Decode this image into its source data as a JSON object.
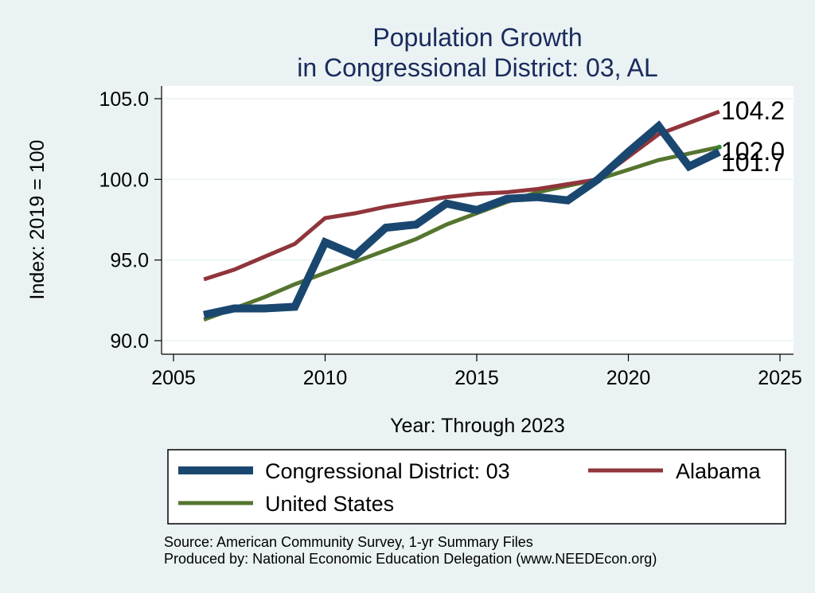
{
  "chart_data": {
    "type": "line",
    "title": [
      "Population Growth",
      "in Congressional District: 03, AL"
    ],
    "xlabel": "Year: Through 2023",
    "ylabel": "Index: 2019 = 100",
    "xlim": [
      2005,
      2025
    ],
    "ylim": [
      89.5,
      105.8
    ],
    "xticks": [
      2005,
      2010,
      2015,
      2020,
      2025
    ],
    "yticks": [
      90.0,
      95.0,
      100.0,
      105.0
    ],
    "ytick_labels": [
      "90.0",
      "95.0",
      "100.0",
      "105.0"
    ],
    "grid": true,
    "legend_position": "bottom",
    "series": [
      {
        "name": "Congressional District: 03",
        "color": "#1a476f",
        "x": [
          2006,
          2007,
          2008,
          2009,
          2010,
          2011,
          2012,
          2013,
          2014,
          2015,
          2016,
          2017,
          2018,
          2019,
          2020,
          2021,
          2022,
          2023
        ],
        "values": [
          91.6,
          92.0,
          92.0,
          92.1,
          96.1,
          95.3,
          97.0,
          97.2,
          98.5,
          98.1,
          98.8,
          98.9,
          98.7,
          100.0,
          101.7,
          103.3,
          100.8,
          101.7
        ],
        "end_label": "101.7"
      },
      {
        "name": "Alabama",
        "color": "#90353b",
        "x": [
          2006,
          2007,
          2008,
          2009,
          2010,
          2011,
          2012,
          2013,
          2014,
          2015,
          2016,
          2017,
          2018,
          2019,
          2020,
          2021,
          2022,
          2023
        ],
        "values": [
          93.8,
          94.4,
          95.2,
          96.0,
          97.6,
          97.9,
          98.3,
          98.6,
          98.9,
          99.1,
          99.2,
          99.4,
          99.7,
          100.0,
          101.4,
          102.8,
          103.5,
          104.2
        ],
        "end_label": "104.2"
      },
      {
        "name": "United States",
        "color": "#55752f",
        "x": [
          2006,
          2007,
          2008,
          2009,
          2010,
          2011,
          2012,
          2013,
          2014,
          2015,
          2016,
          2017,
          2018,
          2019,
          2020,
          2021,
          2022,
          2023
        ],
        "values": [
          91.3,
          92.0,
          92.7,
          93.5,
          94.2,
          94.9,
          95.6,
          96.3,
          97.2,
          97.9,
          98.6,
          99.2,
          99.6,
          100.0,
          100.6,
          101.2,
          101.6,
          102.0
        ],
        "end_label": "102.0"
      }
    ]
  },
  "notes": [
    "Source: American Community Survey, 1-yr Summary Files",
    "Produced by: National Economic Education Delegation (www.NEEDEcon.org)"
  ]
}
